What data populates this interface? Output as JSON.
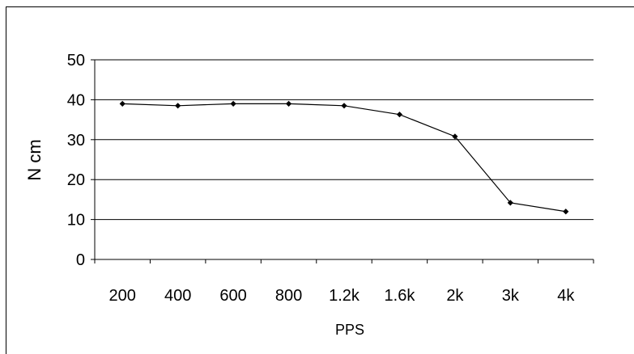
{
  "chart_data": {
    "type": "line",
    "categories": [
      "200",
      "400",
      "600",
      "800",
      "1.2k",
      "1.6k",
      "2k",
      "3k",
      "4k"
    ],
    "series": [
      {
        "values": [
          39,
          38.5,
          39,
          39,
          38.5,
          36.3,
          30.8,
          14.2,
          12
        ]
      }
    ],
    "ylabel": "N cm",
    "xlabel": "PPS",
    "ylim": [
      0,
      50
    ],
    "yticks": [
      "0",
      "10",
      "20",
      "30",
      "40",
      "50"
    ],
    "grid": "horizontal",
    "legend": "none",
    "colors": {
      "line": "#000000",
      "grid": "#000000",
      "marker": "#000000"
    }
  }
}
